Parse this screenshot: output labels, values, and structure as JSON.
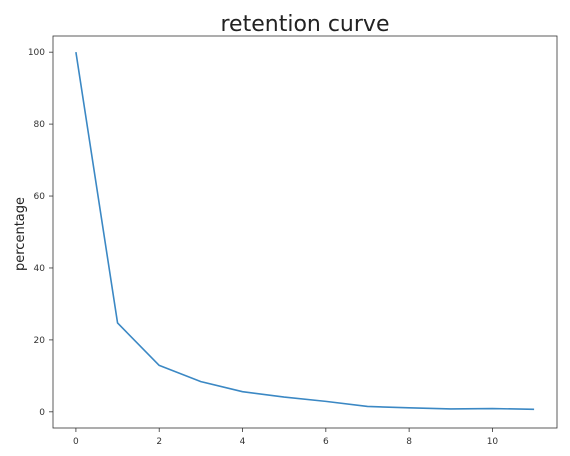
{
  "chart_data": {
    "type": "line",
    "title": "retention curve",
    "xlabel": "",
    "ylabel": "percentage",
    "x": [
      0,
      1,
      2,
      3,
      4,
      5,
      6,
      7,
      8,
      9,
      10,
      11
    ],
    "series": [
      {
        "values": [
          100,
          24.7,
          12.9,
          8.4,
          5.6,
          4.1,
          2.9,
          1.5,
          1.1,
          0.8,
          0.9,
          0.7
        ],
        "color": "#3b88c4"
      }
    ],
    "xlim": [
      -0.55,
      11.55
    ],
    "ylim": [
      -4.5,
      104.5
    ],
    "xticks": [
      0,
      2,
      4,
      6,
      8,
      10
    ],
    "yticks": [
      0,
      20,
      40,
      60,
      80,
      100
    ],
    "grid": false,
    "legend": "none"
  }
}
